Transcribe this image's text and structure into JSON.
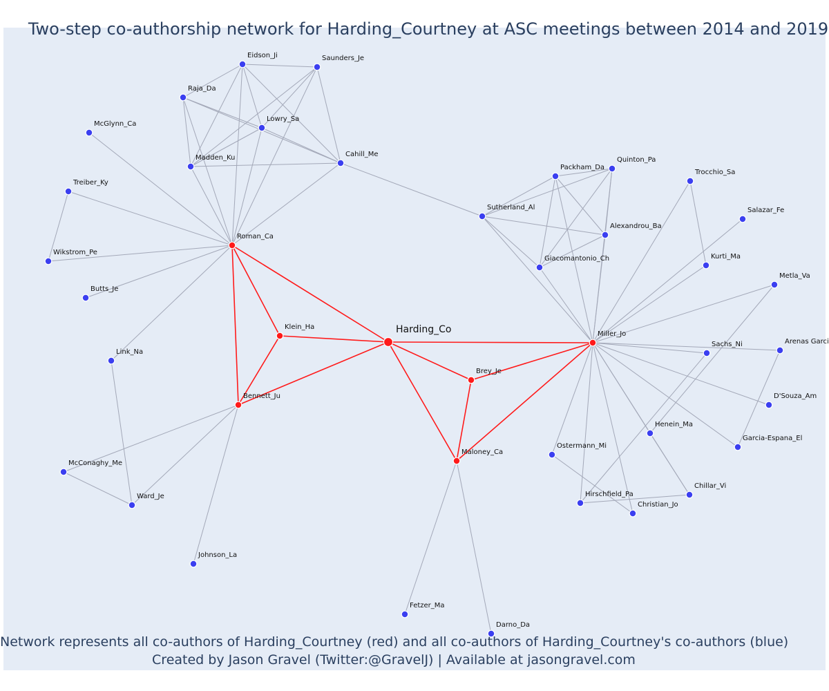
{
  "title": "Two-step co-authorship network for Harding_Courtney at ASC meetings between 2014 and 2019",
  "footer": {
    "line1": "Network represents all co-authors of Harding_Courtney (red) and all co-authors of Harding_Courtney's co-authors (blue)",
    "line2": "Created by Jason Gravel (Twitter:@GravelJ) | Available at jasongravel.com"
  },
  "colors": {
    "red": "#ff1a1a",
    "blue": "#3b3ff0",
    "edge": "#a3a8b8",
    "background": "#e5ecf6",
    "title": "#2a3f5f"
  },
  "nodes": [
    {
      "id": "Harding_Co",
      "group": "focal"
    },
    {
      "id": "Roman_Ca",
      "group": "red"
    },
    {
      "id": "Klein_Ha",
      "group": "red"
    },
    {
      "id": "Bennett_Ju",
      "group": "red"
    },
    {
      "id": "Brey_Je",
      "group": "red"
    },
    {
      "id": "Maloney_Ca",
      "group": "red"
    },
    {
      "id": "Miller_Jo",
      "group": "red"
    },
    {
      "id": "Eidson_Ji",
      "group": "blue"
    },
    {
      "id": "Saunders_Je",
      "group": "blue"
    },
    {
      "id": "Raja_Da",
      "group": "blue"
    },
    {
      "id": "Lowry_Sa",
      "group": "blue"
    },
    {
      "id": "McGlynn_Ca",
      "group": "blue"
    },
    {
      "id": "Madden_Ku",
      "group": "blue"
    },
    {
      "id": "Cahill_Me",
      "group": "blue"
    },
    {
      "id": "Treiber_Ky",
      "group": "blue"
    },
    {
      "id": "Wikstrom_Pe",
      "group": "blue"
    },
    {
      "id": "Butts_Je",
      "group": "blue"
    },
    {
      "id": "Link_Na",
      "group": "blue"
    },
    {
      "id": "McConaghy_Me",
      "group": "blue"
    },
    {
      "id": "Ward_Je",
      "group": "blue"
    },
    {
      "id": "Johnson_La",
      "group": "blue"
    },
    {
      "id": "Packham_Da",
      "group": "blue"
    },
    {
      "id": "Quinton_Pa",
      "group": "blue"
    },
    {
      "id": "Sutherland_Al",
      "group": "blue"
    },
    {
      "id": "Alexandrou_Ba",
      "group": "blue"
    },
    {
      "id": "Giacomantonio_Ch",
      "group": "blue"
    },
    {
      "id": "Trocchio_Sa",
      "group": "blue"
    },
    {
      "id": "Salazar_Fe",
      "group": "blue"
    },
    {
      "id": "Kurti_Ma",
      "group": "blue"
    },
    {
      "id": "Metla_Va",
      "group": "blue"
    },
    {
      "id": "Sachs_Ni",
      "group": "blue"
    },
    {
      "id": "Arenas Garci",
      "group": "blue"
    },
    {
      "id": "D'Souza_Am",
      "group": "blue"
    },
    {
      "id": "Henein_Ma",
      "group": "blue"
    },
    {
      "id": "Garcia-Espana_El",
      "group": "blue"
    },
    {
      "id": "Ostermann_Mi",
      "group": "blue"
    },
    {
      "id": "Chillar_Vi",
      "group": "blue"
    },
    {
      "id": "Hirschfield_Pa",
      "group": "blue"
    },
    {
      "id": "Christian_Jo",
      "group": "blue"
    },
    {
      "id": "Fetzer_Ma",
      "group": "blue"
    },
    {
      "id": "Darno_Da",
      "group": "blue"
    }
  ],
  "edges": [
    [
      "Harding_Co",
      "Roman_Ca"
    ],
    [
      "Harding_Co",
      "Klein_Ha"
    ],
    [
      "Harding_Co",
      "Bennett_Ju"
    ],
    [
      "Harding_Co",
      "Brey_Je"
    ],
    [
      "Harding_Co",
      "Maloney_Ca"
    ],
    [
      "Harding_Co",
      "Miller_Jo"
    ],
    [
      "Roman_Ca",
      "Klein_Ha"
    ],
    [
      "Roman_Ca",
      "Bennett_Ju"
    ],
    [
      "Klein_Ha",
      "Bennett_Ju"
    ],
    [
      "Brey_Je",
      "Maloney_Ca"
    ],
    [
      "Brey_Je",
      "Miller_Jo"
    ],
    [
      "Maloney_Ca",
      "Miller_Jo"
    ],
    [
      "Eidson_Ji",
      "Saunders_Je"
    ],
    [
      "Eidson_Ji",
      "Raja_Da"
    ],
    [
      "Eidson_Ji",
      "Lowry_Sa"
    ],
    [
      "Eidson_Ji",
      "Madden_Ku"
    ],
    [
      "Eidson_Ji",
      "Cahill_Me"
    ],
    [
      "Eidson_Ji",
      "Roman_Ca"
    ],
    [
      "Saunders_Je",
      "Lowry_Sa"
    ],
    [
      "Saunders_Je",
      "Cahill_Me"
    ],
    [
      "Saunders_Je",
      "Madden_Ku"
    ],
    [
      "Saunders_Je",
      "Roman_Ca"
    ],
    [
      "Raja_Da",
      "Lowry_Sa"
    ],
    [
      "Raja_Da",
      "Madden_Ku"
    ],
    [
      "Raja_Da",
      "Cahill_Me"
    ],
    [
      "Raja_Da",
      "Roman_Ca"
    ],
    [
      "Lowry_Sa",
      "Madden_Ku"
    ],
    [
      "Lowry_Sa",
      "Cahill_Me"
    ],
    [
      "Lowry_Sa",
      "Roman_Ca"
    ],
    [
      "Madden_Ku",
      "Cahill_Me"
    ],
    [
      "Madden_Ku",
      "Roman_Ca"
    ],
    [
      "Cahill_Me",
      "Roman_Ca"
    ],
    [
      "Cahill_Me",
      "Sutherland_Al"
    ],
    [
      "McGlynn_Ca",
      "Roman_Ca"
    ],
    [
      "Treiber_Ky",
      "Roman_Ca"
    ],
    [
      "Treiber_Ky",
      "Wikstrom_Pe"
    ],
    [
      "Wikstrom_Pe",
      "Roman_Ca"
    ],
    [
      "Butts_Je",
      "Roman_Ca"
    ],
    [
      "Link_Na",
      "Roman_Ca"
    ],
    [
      "Link_Na",
      "Ward_Je"
    ],
    [
      "Bennett_Ju",
      "McConaghy_Me"
    ],
    [
      "Bennett_Ju",
      "Ward_Je"
    ],
    [
      "Bennett_Ju",
      "Johnson_La"
    ],
    [
      "McConaghy_Me",
      "Ward_Je"
    ],
    [
      "Packham_Da",
      "Quinton_Pa"
    ],
    [
      "Packham_Da",
      "Sutherland_Al"
    ],
    [
      "Packham_Da",
      "Alexandrou_Ba"
    ],
    [
      "Packham_Da",
      "Giacomantonio_Ch"
    ],
    [
      "Packham_Da",
      "Miller_Jo"
    ],
    [
      "Quinton_Pa",
      "Sutherland_Al"
    ],
    [
      "Quinton_Pa",
      "Alexandrou_Ba"
    ],
    [
      "Quinton_Pa",
      "Giacomantonio_Ch"
    ],
    [
      "Quinton_Pa",
      "Miller_Jo"
    ],
    [
      "Sutherland_Al",
      "Alexandrou_Ba"
    ],
    [
      "Sutherland_Al",
      "Giacomantonio_Ch"
    ],
    [
      "Sutherland_Al",
      "Miller_Jo"
    ],
    [
      "Alexandrou_Ba",
      "Giacomantonio_Ch"
    ],
    [
      "Alexandrou_Ba",
      "Miller_Jo"
    ],
    [
      "Giacomantonio_Ch",
      "Miller_Jo"
    ],
    [
      "Trocchio_Sa",
      "Miller_Jo"
    ],
    [
      "Trocchio_Sa",
      "Kurti_Ma"
    ],
    [
      "Salazar_Fe",
      "Miller_Jo"
    ],
    [
      "Kurti_Ma",
      "Miller_Jo"
    ],
    [
      "Metla_Va",
      "Miller_Jo"
    ],
    [
      "Metla_Va",
      "Henein_Ma"
    ],
    [
      "Sachs_Ni",
      "Miller_Jo"
    ],
    [
      "Sachs_Ni",
      "Hirschfield_Pa"
    ],
    [
      "Arenas Garci",
      "Miller_Jo"
    ],
    [
      "Arenas Garci",
      "Garcia-Espana_El"
    ],
    [
      "D'Souza_Am",
      "Miller_Jo"
    ],
    [
      "Henein_Ma",
      "Miller_Jo"
    ],
    [
      "Henein_Ma",
      "Chillar_Vi"
    ],
    [
      "Garcia-Espana_El",
      "Miller_Jo"
    ],
    [
      "Ostermann_Mi",
      "Miller_Jo"
    ],
    [
      "Ostermann_Mi",
      "Christian_Jo"
    ],
    [
      "Chillar_Vi",
      "Miller_Jo"
    ],
    [
      "Chillar_Vi",
      "Hirschfield_Pa"
    ],
    [
      "Hirschfield_Pa",
      "Miller_Jo"
    ],
    [
      "Christian_Jo",
      "Miller_Jo"
    ],
    [
      "Maloney_Ca",
      "Fetzer_Ma"
    ],
    [
      "Maloney_Ca",
      "Darno_Da"
    ]
  ]
}
